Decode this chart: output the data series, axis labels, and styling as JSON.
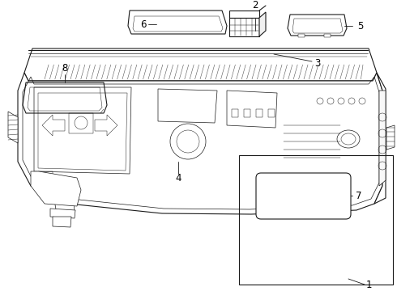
{
  "background_color": "#ffffff",
  "line_color": "#1a1a1a",
  "label_color": "#000000",
  "fig_width": 4.9,
  "fig_height": 3.6,
  "dpi": 100,
  "label_fontsize": 8.5,
  "lw_main": 0.8,
  "lw_thin": 0.5,
  "lw_detail": 0.35
}
